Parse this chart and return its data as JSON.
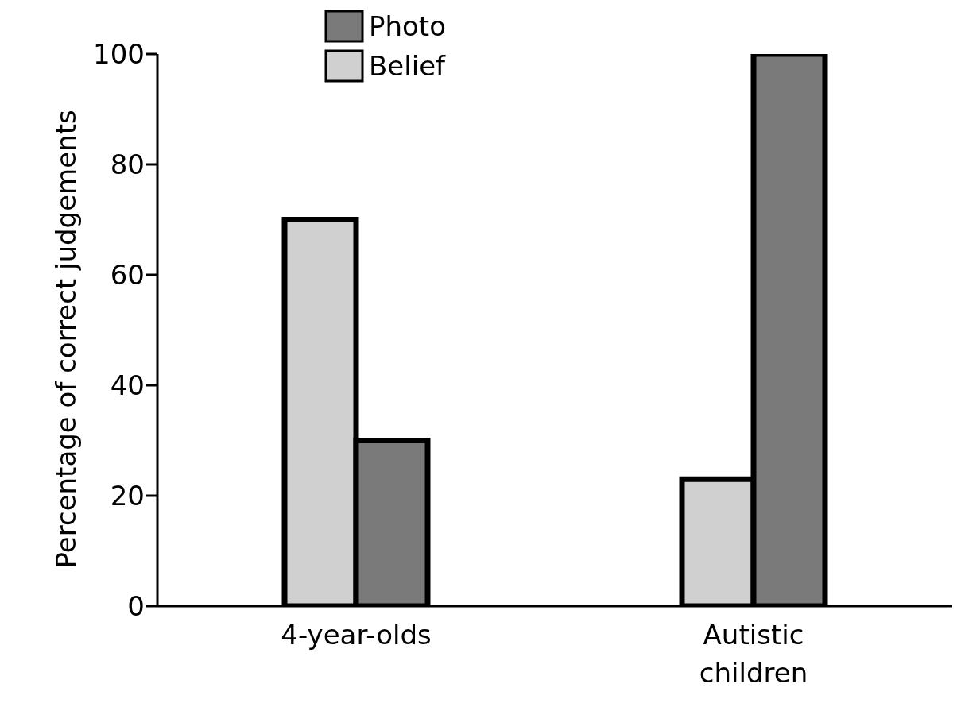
{
  "chart_data": {
    "type": "bar",
    "ylabel": "Percentage of correct judgements",
    "categories": [
      "4-year-olds",
      "Autistic children"
    ],
    "series": [
      {
        "name": "Belief",
        "color": "#d0d0d0",
        "values": [
          70,
          23
        ]
      },
      {
        "name": "Photo",
        "color": "#7a7a7a",
        "values": [
          30,
          100
        ]
      }
    ],
    "ylim": [
      0,
      100
    ],
    "yticks": [
      0,
      20,
      40,
      60,
      80,
      100
    ],
    "grid": false,
    "legend": "top left"
  }
}
